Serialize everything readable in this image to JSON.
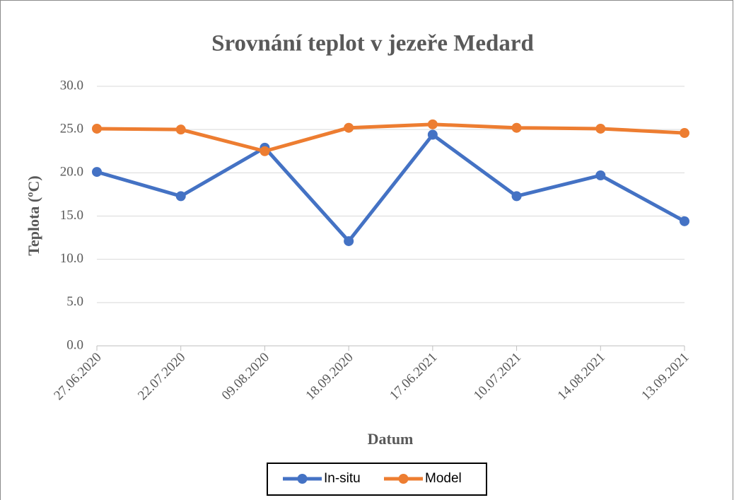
{
  "chart_data": {
    "type": "line",
    "title": "Srovnání teplot v jezeře Medard",
    "x_label": "Datum",
    "y_label": "Teplota (ºC)",
    "categories": [
      "27.06.2020",
      "22.07.2020",
      "09.08.2020",
      "18.09.2020",
      "17.06.2021",
      "10.07.2021",
      "14.08.2021",
      "13.09.2021"
    ],
    "series": [
      {
        "name": "In-situ",
        "color": "#4472c4",
        "values": [
          20.1,
          17.3,
          22.9,
          12.1,
          24.4,
          17.3,
          19.7,
          14.4
        ]
      },
      {
        "name": "Model",
        "color": "#ed7d31",
        "values": [
          25.1,
          25.0,
          22.5,
          25.2,
          25.6,
          25.2,
          25.1,
          24.6
        ]
      }
    ],
    "ylim": [
      0,
      30
    ],
    "yticks": [
      {
        "value": 0,
        "label": "0.0"
      },
      {
        "value": 5,
        "label": "5.0"
      },
      {
        "value": 10,
        "label": "10.0"
      },
      {
        "value": 15,
        "label": "15.0"
      },
      {
        "value": 20,
        "label": "20.0"
      },
      {
        "value": 25,
        "label": "25.0"
      },
      {
        "value": 30,
        "label": "30.0"
      }
    ],
    "grid": true,
    "legend": "bottom"
  }
}
